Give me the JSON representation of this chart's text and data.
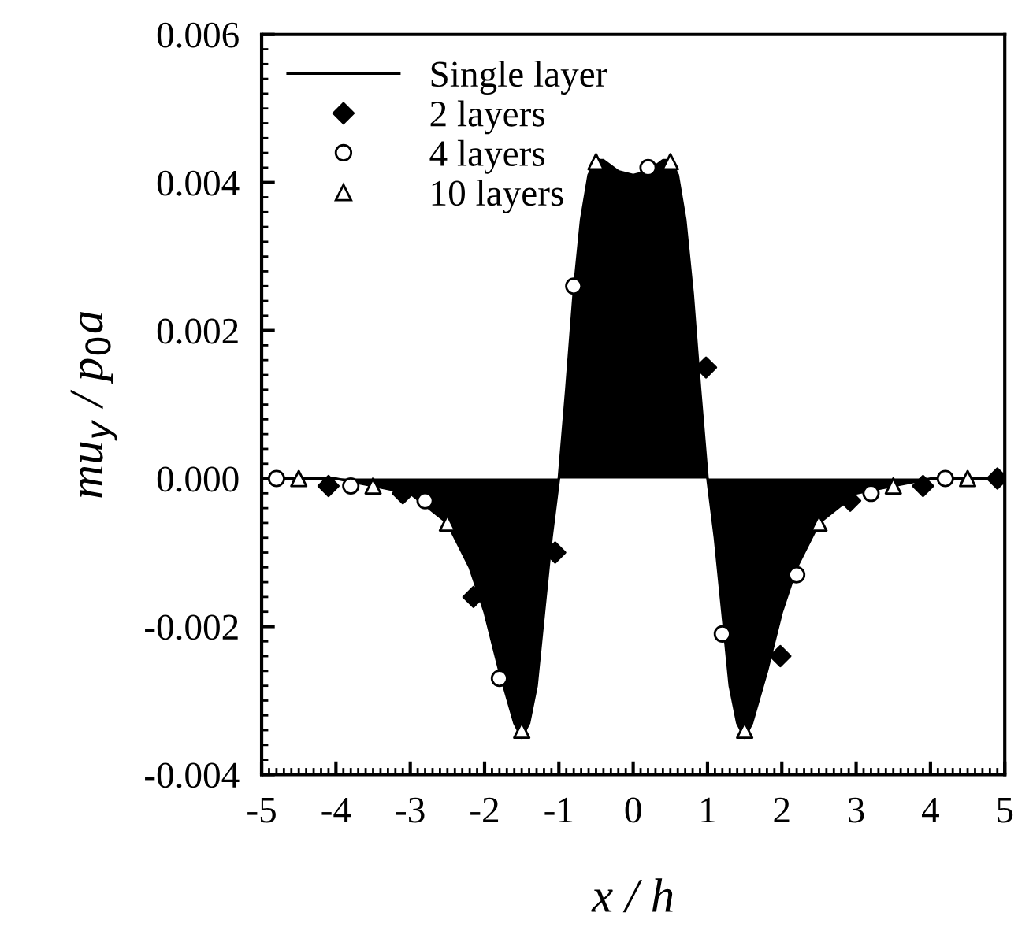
{
  "chart_data": {
    "type": "scatter",
    "xlabel": "x / h",
    "ylabel": "mu$_{y}$ / p$_{0}$a",
    "xlim": [
      -5,
      5
    ],
    "ylim": [
      -0.004,
      0.006
    ],
    "xticks": [
      -5,
      -4,
      -3,
      -2,
      -1,
      0,
      1,
      2,
      3,
      4,
      5
    ],
    "yticks": [
      {
        "value": -0.004,
        "label": "-0.004"
      },
      {
        "value": -0.002,
        "label": "-0.002"
      },
      {
        "value": 0,
        "label": "0.000"
      },
      {
        "value": 0.002,
        "label": "0.002"
      },
      {
        "value": 0.004,
        "label": "0.004"
      },
      {
        "value": 0.006,
        "label": "0.006"
      }
    ],
    "grid": false,
    "legend": "top left",
    "series": [
      {
        "name": "Single layer",
        "type": "area",
        "color": "#000000",
        "marker": "none",
        "line_style": "solid",
        "x": [
          -5,
          -4,
          -3.5,
          -3,
          -2.5,
          -2.2,
          -2,
          -1.8,
          -1.6,
          -1.5,
          -1.4,
          -1.3,
          -1.2,
          -1.1,
          -1.0,
          -0.9,
          -0.8,
          -0.7,
          -0.6,
          -0.5,
          -0.4,
          -0.2,
          0,
          0.2,
          0.4,
          0.5,
          0.6,
          0.7,
          0.8,
          0.9,
          1.0,
          1.1,
          1.2,
          1.3,
          1.4,
          1.5,
          1.6,
          1.8,
          2,
          2.2,
          2.5,
          3,
          3.5,
          4,
          5
        ],
        "values": [
          0,
          0,
          -0.0001,
          -0.0002,
          -0.0006,
          -0.0012,
          -0.0018,
          -0.0026,
          -0.0033,
          -0.0035,
          -0.0033,
          -0.0028,
          -0.0018,
          -0.0008,
          0,
          0.0012,
          0.0025,
          0.0035,
          0.0041,
          0.0043,
          0.0043,
          0.00415,
          0.0041,
          0.00415,
          0.0043,
          0.0043,
          0.0041,
          0.0035,
          0.0025,
          0.0012,
          0,
          -0.0008,
          -0.0018,
          -0.0028,
          -0.0033,
          -0.0035,
          -0.0033,
          -0.0026,
          -0.0018,
          -0.0012,
          -0.0006,
          -0.0002,
          -0.0001,
          0,
          0
        ]
      },
      {
        "name": "2 layers",
        "color": "#000000",
        "marker": "diamond",
        "x": [
          -4.1,
          -3.1,
          -2.15,
          -1.05,
          0.98,
          1.98,
          2.92,
          3.9,
          4.9
        ],
        "values": [
          -0.0001,
          -0.0002,
          -0.0016,
          -0.001,
          0.0015,
          -0.0024,
          -0.0003,
          -0.0001,
          0
        ]
      },
      {
        "name": "4 layers",
        "color": "#ffffff",
        "marker": "circle",
        "x": [
          -4.8,
          -3.8,
          -2.8,
          -1.8,
          -0.8,
          0.2,
          1.2,
          2.2,
          3.2,
          4.2
        ],
        "values": [
          0,
          -0.0001,
          -0.0003,
          -0.0027,
          0.0026,
          0.0042,
          -0.0021,
          -0.0013,
          -0.0002,
          0
        ]
      },
      {
        "name": "10 layers",
        "color": "#ffffff",
        "marker": "triangle",
        "x": [
          -4.5,
          -3.5,
          -2.5,
          -1.5,
          -0.5,
          0.5,
          1.5,
          2.5,
          3.5,
          4.5
        ],
        "values": [
          0,
          -0.0001,
          -0.0006,
          -0.0034,
          0.00428,
          0.00428,
          -0.0034,
          -0.0006,
          -0.0001,
          0
        ]
      }
    ]
  }
}
